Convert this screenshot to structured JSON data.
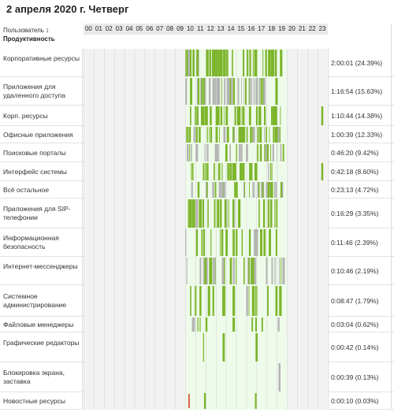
{
  "header": {
    "date_title": "2 апреля 2020 г. Четверг",
    "user_label": "Пользователь",
    "sort_icon": "↕",
    "productivity_label": "Продуктивность",
    "hours": [
      "00",
      "01",
      "02",
      "03",
      "04",
      "05",
      "06",
      "07",
      "08",
      "09",
      "10",
      "11",
      "12",
      "13",
      "14",
      "15",
      "16",
      "17",
      "18",
      "19",
      "20",
      "21",
      "22",
      "23"
    ]
  },
  "colors": {
    "productive": "#7cb52a",
    "neutral": "#b4b4b4",
    "unproductive": "#d9533b",
    "work_hours_bg": "#eefbea",
    "off_hours_bg": "#f2f2f2"
  },
  "rows": [
    {
      "label": "Корпоративные ресурсы",
      "value": "2:00:01 (24.39%)"
    },
    {
      "label": "Приложения для удаленного доступа",
      "value": "1:16:54 (15.63%)"
    },
    {
      "label": "Корп. ресурсы",
      "value": "1:10:44 (14.38%)"
    },
    {
      "label": "Офисные приложения",
      "value": "1:00:39 (12.33%)"
    },
    {
      "label": "Поисковые порталы",
      "value": "0:46:20 (9.42%)"
    },
    {
      "label": "Интерфейс системы",
      "value": "0:42:18 (8.60%)"
    },
    {
      "label": "Всё остальное",
      "value": "0:23:13 (4.72%)"
    },
    {
      "label": "Приложения для SIP-телефонии",
      "value": "0:16:29 (3.35%)"
    },
    {
      "label": "Информационная безопасность",
      "value": "0:11:46 (2.39%)"
    },
    {
      "label": "Интернет-мессенджеры",
      "value": "0:10:46 (2.19%)"
    },
    {
      "label": "Системное администрирование",
      "value": "0:08:47 (1.79%)"
    },
    {
      "label": "Файловые менеджеры",
      "value": "0:03:04 (0.62%)"
    },
    {
      "label": "Графические редакторы",
      "value": "0:00:42 (0.14%)"
    },
    {
      "label": "Блокировка экрана, заставка",
      "value": "0:00:39 (0.13%)"
    },
    {
      "label": "Новостные ресурсы",
      "value": "0:00:10 (0.03%)"
    }
  ]
}
